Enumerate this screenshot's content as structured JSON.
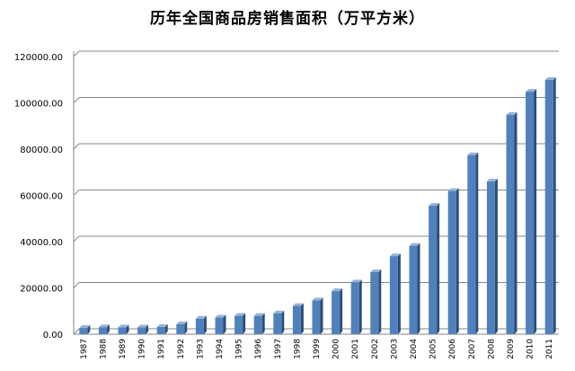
{
  "chart_data": {
    "type": "bar",
    "title": "历年全国商品房销售面积（万平方米）",
    "xlabel": "",
    "ylabel": "",
    "ylim": [
      0,
      120000
    ],
    "yticks": [
      "0.00",
      "20000.00",
      "40000.00",
      "60000.00",
      "80000.00",
      "100000.00",
      "120000.00"
    ],
    "grid": true,
    "legend": "none",
    "categories": [
      "1987",
      "1988",
      "1989",
      "1990",
      "1991",
      "1992",
      "1993",
      "1994",
      "1995",
      "1996",
      "1997",
      "1998",
      "1999",
      "2000",
      "2001",
      "2002",
      "2003",
      "2004",
      "2005",
      "2006",
      "2007",
      "2008",
      "2009",
      "2010",
      "2011"
    ],
    "values": [
      2700,
      3000,
      2900,
      2900,
      3100,
      4300,
      6700,
      7200,
      7900,
      7900,
      9000,
      12200,
      14600,
      18600,
      22400,
      26800,
      33700,
      38200,
      55500,
      61900,
      77400,
      66000,
      94800,
      104800,
      109900
    ],
    "colors": {
      "bar_front": "#4F81BD",
      "bar_side": "#2C4D75",
      "bar_top": "#95B3D7",
      "grid": "#878787",
      "axis": "#868686"
    }
  }
}
